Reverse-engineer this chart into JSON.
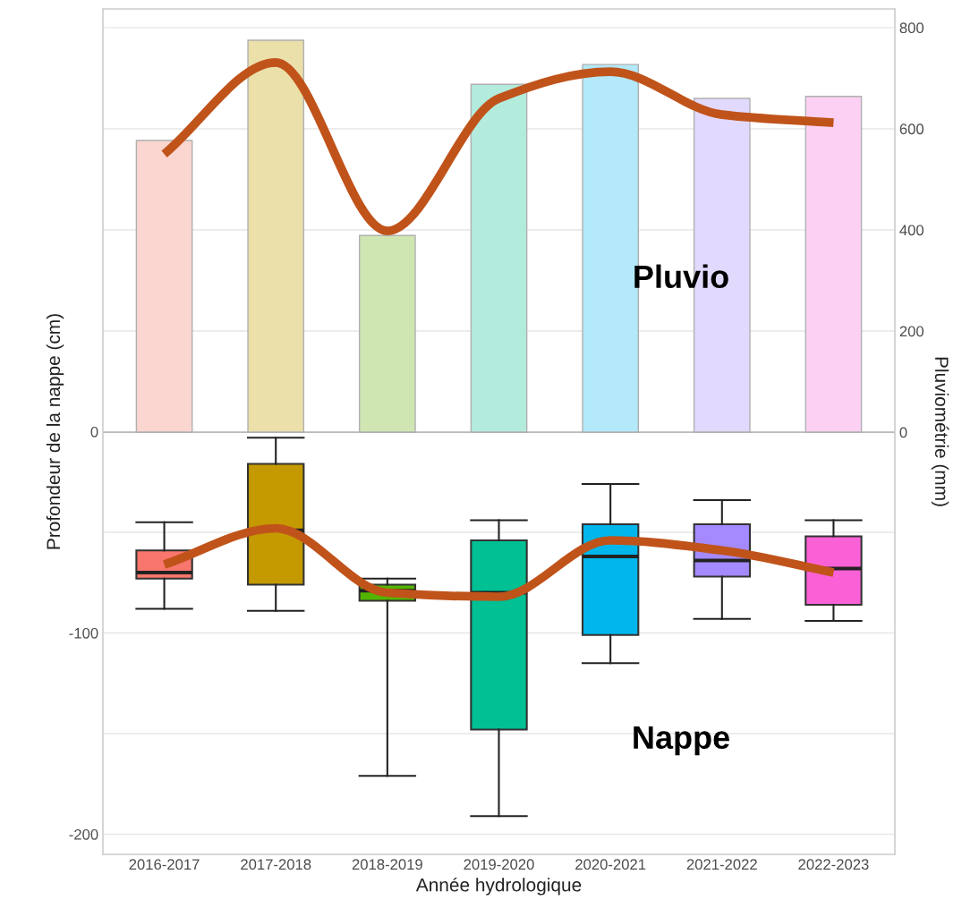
{
  "chart_data": {
    "type": "box",
    "xlabel": "Année hydrologique",
    "ylabel": "Profondeur de la nappe (cm)",
    "y2label": "Pluviométrie (mm)",
    "categories": [
      "2016-2017",
      "2017-2018",
      "2018-2019",
      "2019-2020",
      "2020-2021",
      "2021-2022",
      "2022-2023"
    ],
    "ylim": [
      -210,
      210
    ],
    "yticks": [
      -200,
      {
        "value": -150,
        "label": null
      },
      -100,
      {
        "value": -50,
        "label": null
      },
      0
    ],
    "y2lim": [
      -835,
      837
    ],
    "y2ticks": [
      0,
      200,
      400,
      600,
      800
    ],
    "grid": true,
    "series": [
      {
        "type": "bar",
        "axis": "y2",
        "colors": [
          "#fbd5d0",
          "#ebdfaa",
          "#cfe6b2",
          "#b3ebdc",
          "#b3e9f9",
          "#e2d9ff",
          "#fcd0f3"
        ],
        "values": [
          577,
          775,
          389,
          688,
          727,
          660,
          664
        ]
      },
      {
        "axis": "y",
        "colors": [
          "#F8766D",
          "#C49A00",
          "#53B400",
          "#00C094",
          "#00B6EB",
          "#A58AFF",
          "#FB61D7"
        ],
        "boxes": [
          {
            "low": -88,
            "q1": -73,
            "median": -70,
            "q3": -59,
            "high": -45
          },
          {
            "low": -89,
            "q1": -76,
            "median": -49,
            "q3": -16,
            "high": -3
          },
          {
            "low": -171,
            "q1": -84,
            "median": -79,
            "q3": -76,
            "high": -73
          },
          {
            "low": -191,
            "q1": -148,
            "median": -80,
            "q3": -54,
            "high": -44
          },
          {
            "low": -115,
            "q1": -101,
            "median": -62,
            "q3": -46,
            "high": -26
          },
          {
            "low": -93,
            "q1": -72,
            "median": -64,
            "q3": -46,
            "high": -34
          },
          {
            "low": -94,
            "q1": -86,
            "median": -68,
            "q3": -52,
            "high": -44
          }
        ]
      },
      {
        "type": "line",
        "axis": "y2",
        "color": "#c0531a",
        "values": [
          550,
          731,
          398,
          660,
          713,
          628,
          612
        ]
      },
      {
        "type": "line",
        "axis": "y",
        "color": "#c0531a",
        "values": [
          -66,
          -48,
          -80,
          -82,
          -54,
          -59,
          -70
        ]
      }
    ],
    "annotations": [
      "Pluvio",
      "Nappe"
    ]
  }
}
